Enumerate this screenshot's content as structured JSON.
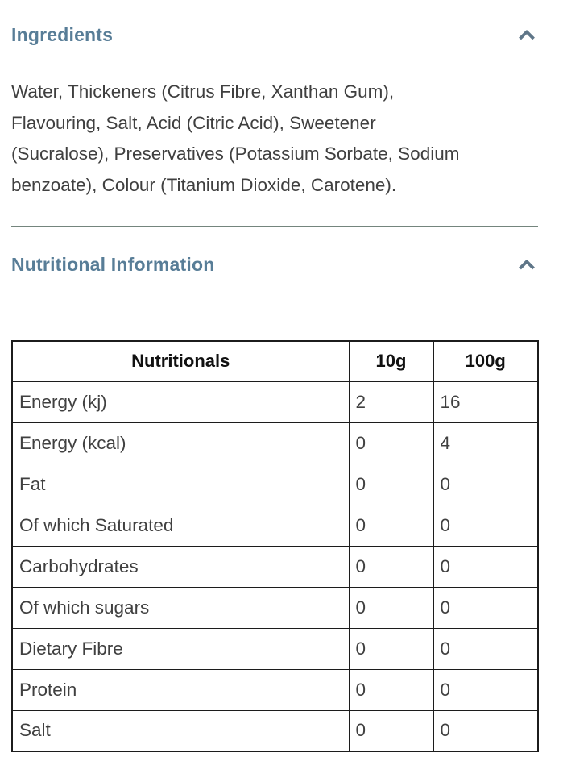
{
  "colors": {
    "accent_heading": "#587d97",
    "chevron": "#5f7688",
    "body_text": "#3f3f3f",
    "table_border": "#1c1c1c",
    "divider": "#74857d",
    "background": "#ffffff"
  },
  "ingredients_section": {
    "title": "Ingredients",
    "toggle_icon": "chevron-up-icon",
    "state": "expanded",
    "body_lines": [
      "Water, Thickeners (Citrus Fibre, Xanthan Gum),",
      "Flavouring, Salt, Acid (Citric Acid), Sweetener",
      "(Sucralose), Preservatives (Potassium Sorbate, Sodium",
      "benzoate), Colour (Titanium Dioxide, Carotene)."
    ],
    "body_full": "Water, Thickeners (Citrus Fibre, Xanthan Gum), Flavouring, Salt, Acid (Citric Acid), Sweetener (Sucralose), Preservatives (Potassium Sorbate, Sodium benzoate), Colour (Titanium Dioxide, Carotene)."
  },
  "nutrition_section": {
    "title": "Nutritional Information",
    "toggle_icon": "chevron-up-icon",
    "state": "expanded",
    "table": {
      "headers": [
        "Nutritionals",
        "10g",
        "100g"
      ],
      "rows": [
        {
          "label": "Energy (kj)",
          "per10g": "2",
          "per100g": "16"
        },
        {
          "label": "Energy (kcal)",
          "per10g": "0",
          "per100g": "4"
        },
        {
          "label": "Fat",
          "per10g": "0",
          "per100g": "0"
        },
        {
          "label": "Of which Saturated",
          "per10g": "0",
          "per100g": "0"
        },
        {
          "label": "Carbohydrates",
          "per10g": "0",
          "per100g": "0"
        },
        {
          "label": "Of which sugars",
          "per10g": "0",
          "per100g": "0"
        },
        {
          "label": "Dietary Fibre",
          "per10g": "0",
          "per100g": "0"
        },
        {
          "label": "Protein",
          "per10g": "0",
          "per100g": "0"
        },
        {
          "label": "Salt",
          "per10g": "0",
          "per100g": "0"
        }
      ]
    }
  }
}
